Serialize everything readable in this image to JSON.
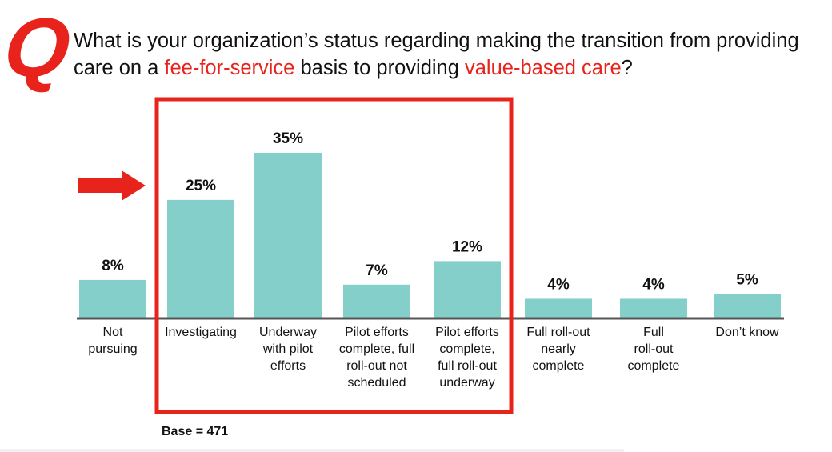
{
  "question": {
    "mark": "Q",
    "part1": "What is your organization’s status regarding making the transition from providing care on a ",
    "highlight1": "fee-for-service",
    "part2": " basis to providing ",
    "highlight2": "value-based care",
    "part3": "?"
  },
  "base_note": "Base = 471",
  "colors": {
    "bar": "#85cfcb",
    "highlight": "#e8231b",
    "axis": "#555555"
  },
  "chart_data": {
    "type": "bar",
    "categories": [
      [
        "Not",
        "pursuing"
      ],
      [
        "Investigating"
      ],
      [
        "Underway",
        "with pilot",
        "efforts"
      ],
      [
        "Pilot efforts",
        "complete, full",
        "roll-out not",
        "scheduled"
      ],
      [
        "Pilot efforts",
        "complete,",
        "full roll-out",
        "underway"
      ],
      [
        "Full roll-out",
        "nearly",
        "complete"
      ],
      [
        "Full",
        "roll-out",
        "complete"
      ],
      [
        "Don’t know"
      ]
    ],
    "values": [
      8,
      25,
      35,
      7,
      12,
      4,
      4,
      5
    ],
    "value_labels": [
      "8%",
      "25%",
      "35%",
      "7%",
      "12%",
      "4%",
      "4%",
      "5%"
    ],
    "unit": "%",
    "ylim": [
      0,
      35
    ],
    "highlighted_categories": [
      1,
      2,
      3,
      4
    ],
    "grid": false,
    "legend": "none"
  }
}
